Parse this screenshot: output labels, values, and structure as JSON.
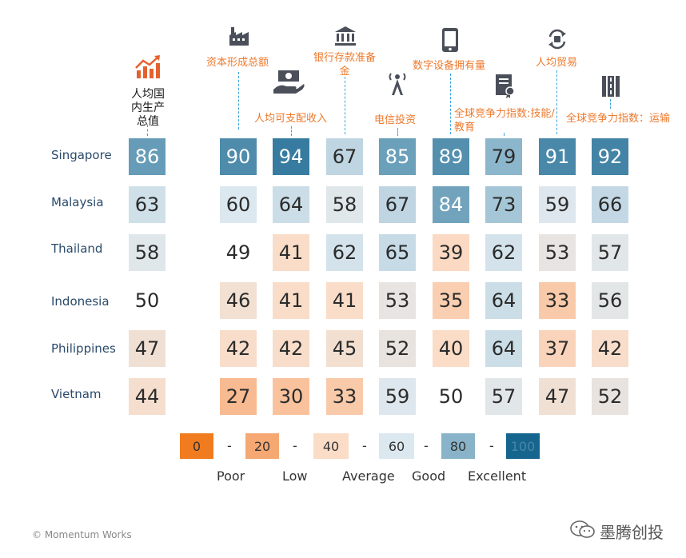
{
  "columns": [
    {
      "label": "人均国\n内生产\n总值",
      "icon": "growth-chart-icon"
    },
    {
      "label": "资本形成总额",
      "icon": "factory-icon"
    },
    {
      "label": "人均可支配收入",
      "icon": "cash-hand-icon"
    },
    {
      "label": "银行存款准备\n金",
      "icon": "bank-icon"
    },
    {
      "label": "电信投资",
      "icon": "telecom-tower-icon"
    },
    {
      "label": "数字设备拥有量",
      "icon": "smartphone-icon"
    },
    {
      "label": "全球竞争力指数:技能/\n教育",
      "icon": "certificate-icon"
    },
    {
      "label": "人均贸易",
      "icon": "trade-exchange-icon"
    },
    {
      "label": "全球竞争力指数：运输",
      "icon": "road-icon"
    }
  ],
  "chart_data": {
    "type": "heatmap",
    "rows": [
      "Singapore",
      "Malaysia",
      "Thailand",
      "Indonesia",
      "Philippines",
      "Vietnam"
    ],
    "columns": [
      "人均国内生产总值",
      "资本形成总额",
      "人均可支配收入",
      "银行存款准备金",
      "电信投资",
      "数字设备拥有量",
      "全球竞争力指数:技能/教育",
      "人均贸易",
      "全球竞争力指数：运输"
    ],
    "values": [
      [
        86,
        90,
        94,
        67,
        85,
        89,
        79,
        91,
        92
      ],
      [
        63,
        60,
        64,
        58,
        67,
        84,
        73,
        59,
        66
      ],
      [
        58,
        49,
        41,
        62,
        65,
        39,
        62,
        53,
        57
      ],
      [
        50,
        46,
        41,
        41,
        53,
        35,
        64,
        33,
        56
      ],
      [
        47,
        42,
        42,
        45,
        52,
        40,
        64,
        37,
        42
      ],
      [
        44,
        27,
        30,
        33,
        59,
        50,
        57,
        47,
        52
      ]
    ],
    "scale": [
      0,
      100
    ]
  },
  "legend": {
    "stops": [
      "0",
      "20",
      "40",
      "60",
      "80",
      "100"
    ],
    "stop_colors": [
      "#f07c1f",
      "#f6a873",
      "#fbdcc6",
      "#dce8ef",
      "#88b3c9",
      "#15658e"
    ],
    "separator": "-",
    "categories": [
      "Poor",
      "Low",
      "Average",
      "Good",
      "Excellent"
    ]
  },
  "footer": {
    "copyright": "© Momentum Works",
    "brand": "墨腾创投"
  },
  "colors": {
    "orange": "#ee7a2d",
    "blue_dark": "#15658e",
    "line_blue": "#3aa4dd"
  }
}
